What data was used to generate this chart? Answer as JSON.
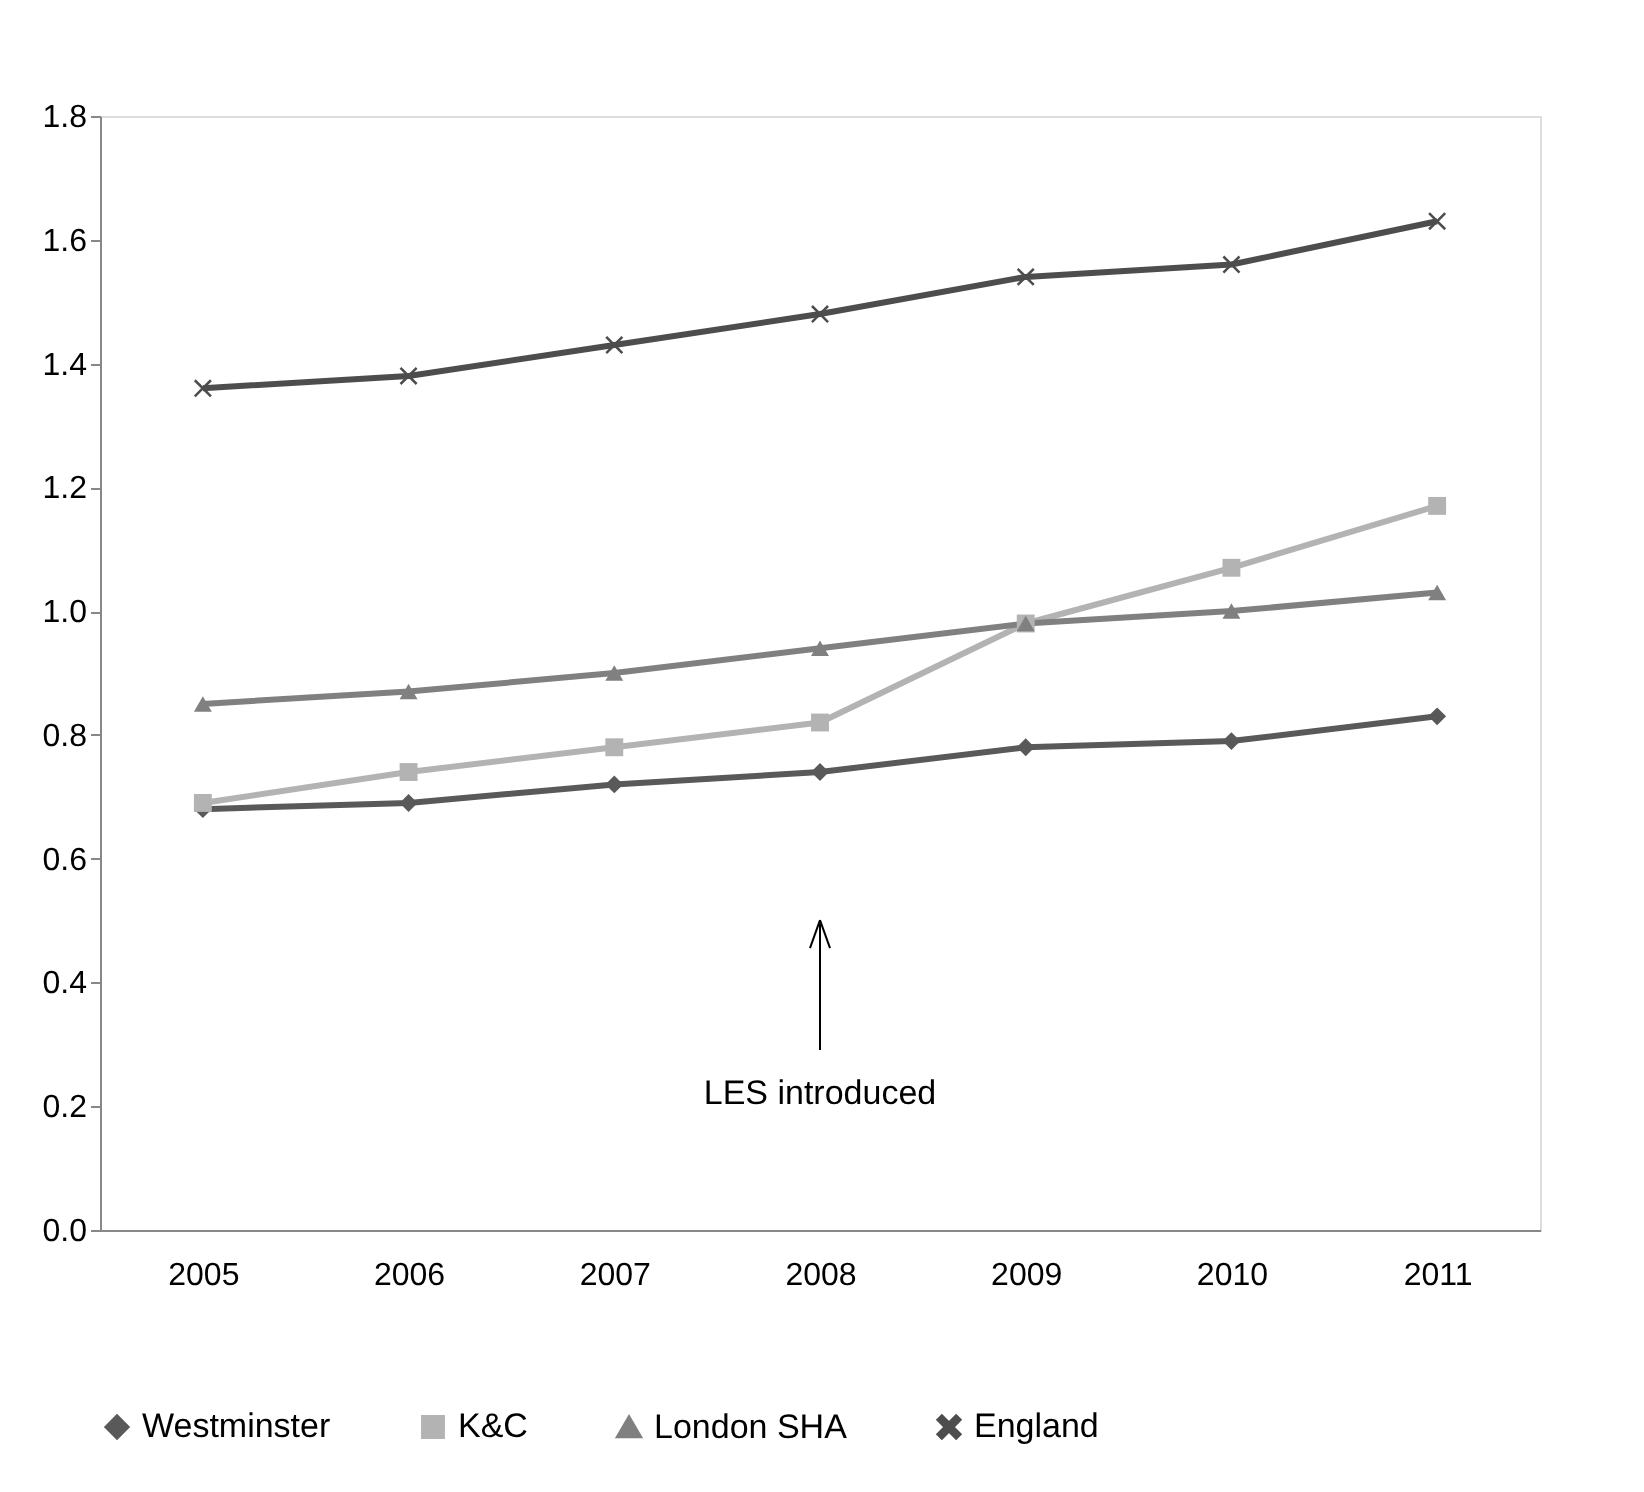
{
  "chart_data": {
    "type": "line",
    "categories": [
      "2005",
      "2006",
      "2007",
      "2008",
      "2009",
      "2010",
      "2011"
    ],
    "series": [
      {
        "name": "Westminster",
        "color": "#595959",
        "marker": "diamond",
        "values": [
          0.68,
          0.69,
          0.72,
          0.74,
          0.78,
          0.79,
          0.83
        ]
      },
      {
        "name": "K&C",
        "color": "#b3b3b3",
        "marker": "square",
        "values": [
          0.69,
          0.74,
          0.78,
          0.82,
          0.98,
          1.07,
          1.17
        ]
      },
      {
        "name": "London SHA",
        "color": "#808080",
        "marker": "triangle",
        "values": [
          0.85,
          0.87,
          0.9,
          0.94,
          0.98,
          1.0,
          1.03
        ]
      },
      {
        "name": "England",
        "color": "#4d4d4d",
        "marker": "cross",
        "values": [
          1.36,
          1.38,
          1.43,
          1.48,
          1.54,
          1.56,
          1.63
        ]
      }
    ],
    "ylim": [
      0,
      1.8
    ],
    "yticks": [
      {
        "value": 0,
        "label": "0.0"
      },
      0.2,
      0.4,
      0.6,
      0.8,
      {
        "value": 1,
        "label": "1.0"
      },
      1.2,
      1.4,
      1.6,
      1.8
    ],
    "annotations": [
      "LES introduced"
    ],
    "grid": false,
    "legend": "bottom",
    "line_style": "solid"
  }
}
